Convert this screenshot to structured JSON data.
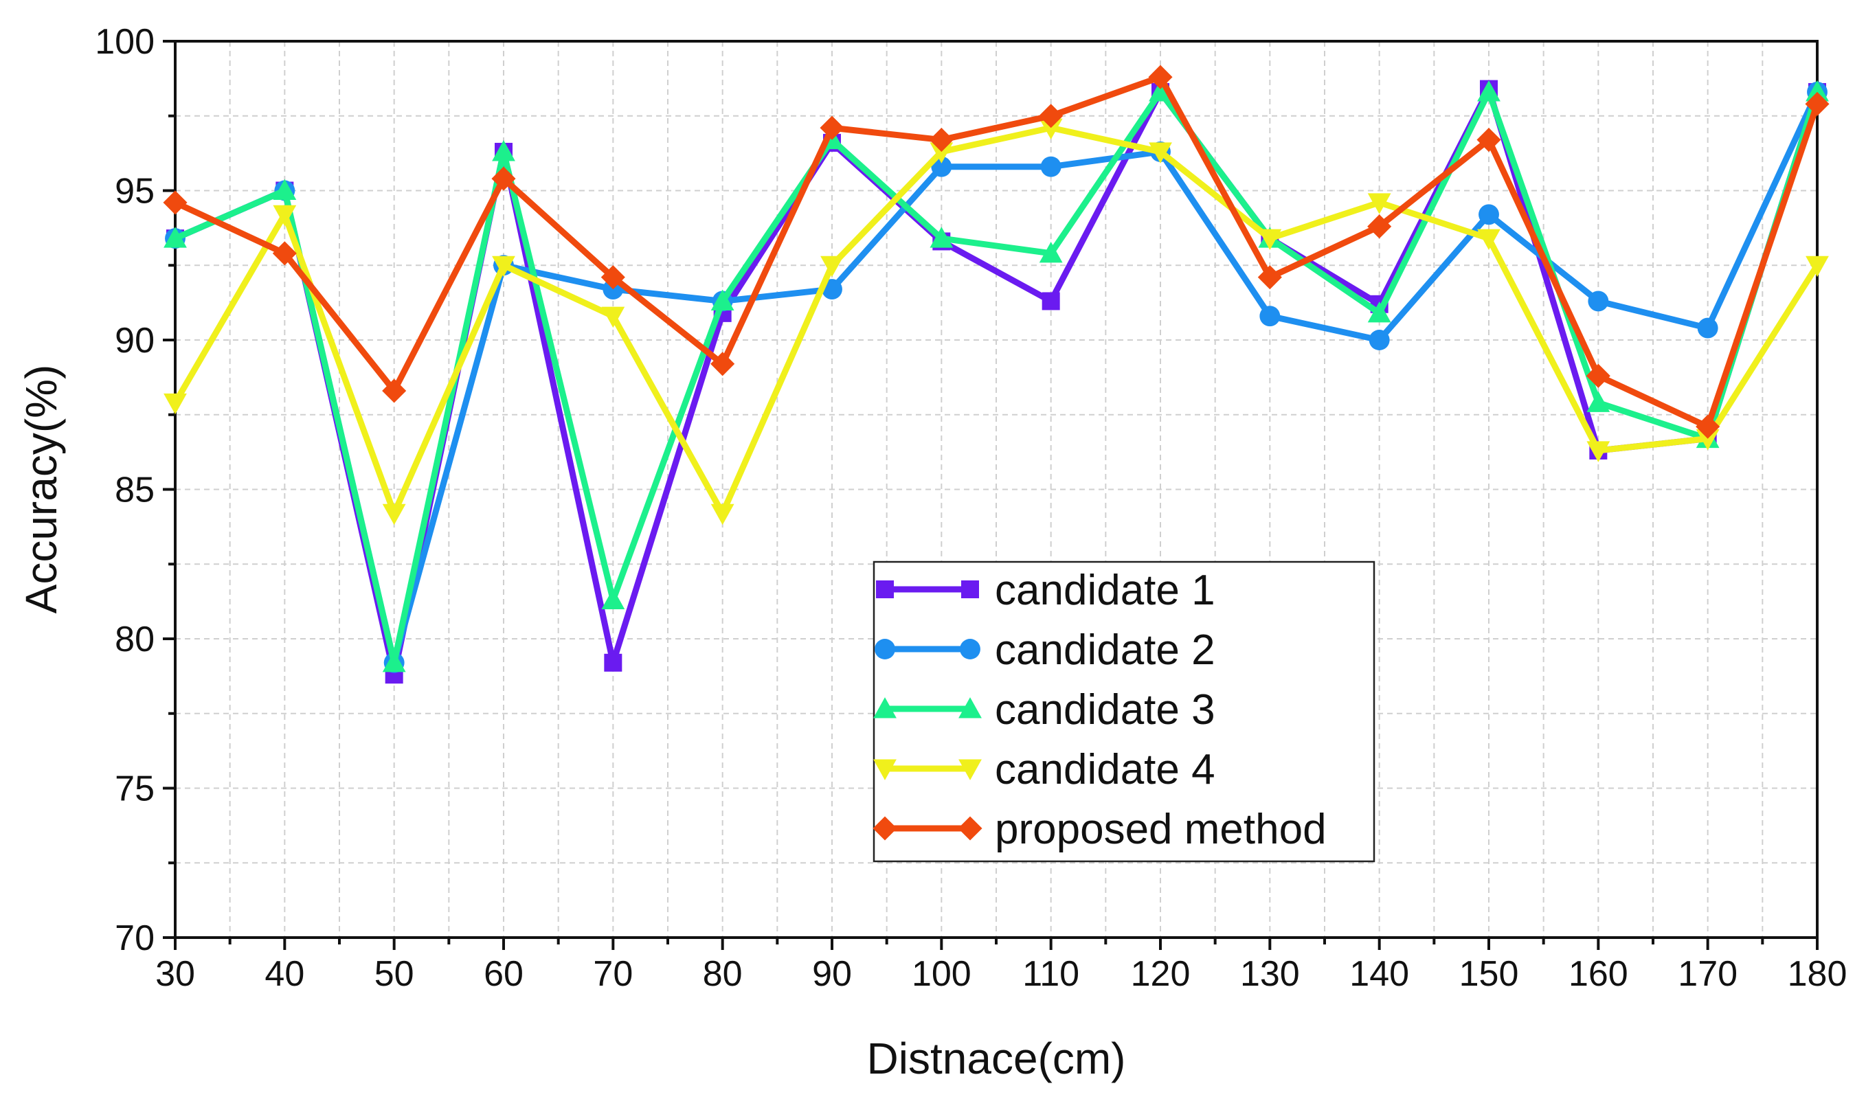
{
  "chart_data": {
    "type": "line",
    "title": "",
    "xlabel": "Distnace(cm)",
    "ylabel": "Accuracy(%)",
    "xlim": [
      30,
      180
    ],
    "ylim": [
      70,
      100
    ],
    "x": [
      30,
      40,
      50,
      60,
      70,
      80,
      90,
      100,
      110,
      120,
      130,
      140,
      150,
      160,
      170,
      180
    ],
    "xticks": [
      "30",
      "40",
      "50",
      "60",
      "70",
      "80",
      "90",
      "100",
      "110",
      "120",
      "130",
      "140",
      "150",
      "160",
      "170",
      "180"
    ],
    "yticks": [
      "70",
      "75",
      "80",
      "85",
      "90",
      "95",
      "100"
    ],
    "grid": true,
    "legend_position": "center-bottom",
    "series": [
      {
        "name": "candidate 1",
        "marker": "square",
        "color": "#6A1BF0",
        "values": [
          93.4,
          95.0,
          78.8,
          96.3,
          79.2,
          90.9,
          96.6,
          93.3,
          91.3,
          98.3,
          93.4,
          91.2,
          98.4,
          86.3,
          86.7,
          98.3
        ]
      },
      {
        "name": "candidate 2",
        "marker": "circle",
        "color": "#1E8FF0",
        "values": [
          93.4,
          95.0,
          79.2,
          92.5,
          91.7,
          91.3,
          91.7,
          95.8,
          95.8,
          96.3,
          90.8,
          90.0,
          94.2,
          91.3,
          90.4,
          98.3
        ]
      },
      {
        "name": "candidate 3",
        "marker": "triangle-up",
        "color": "#1CF08C",
        "values": [
          93.4,
          95.0,
          79.2,
          96.3,
          81.3,
          91.3,
          96.7,
          93.4,
          92.9,
          98.3,
          93.4,
          90.9,
          98.3,
          87.9,
          86.7,
          98.3
        ]
      },
      {
        "name": "candidate 4",
        "marker": "triangle-down",
        "color": "#F0F01C",
        "values": [
          87.9,
          94.2,
          84.2,
          92.5,
          90.8,
          84.2,
          92.5,
          96.3,
          97.1,
          96.3,
          93.4,
          94.6,
          93.4,
          86.3,
          86.7,
          92.5
        ]
      },
      {
        "name": "proposed method",
        "marker": "diamond",
        "color": "#F04A0E",
        "values": [
          94.6,
          92.9,
          88.3,
          95.4,
          92.1,
          89.2,
          97.1,
          96.7,
          97.5,
          98.8,
          92.1,
          93.8,
          96.7,
          88.8,
          87.1,
          97.9
        ]
      }
    ]
  }
}
